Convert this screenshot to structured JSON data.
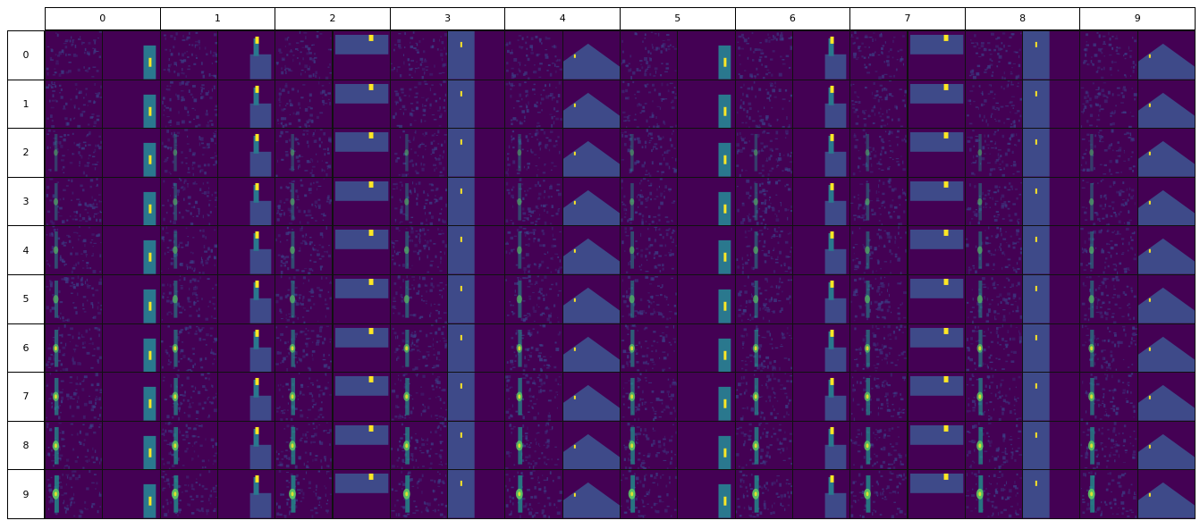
{
  "columns": [
    "0",
    "1",
    "2",
    "3",
    "4",
    "5",
    "6",
    "7",
    "8",
    "9"
  ],
  "rows": [
    "0",
    "1",
    "2",
    "3",
    "4",
    "5",
    "6",
    "7",
    "8",
    "9"
  ],
  "colors": {
    "background": "#440154",
    "noise_base": "#3b3f86",
    "highlight_mid": "#21918c",
    "highlight_high": "#5ec962",
    "highlight_peak": "#fde725",
    "frame_panel": "#3e4a89",
    "frame_object": "#2a788e"
  },
  "panel_kinds": [
    "heatmap",
    "scene-frame"
  ]
}
